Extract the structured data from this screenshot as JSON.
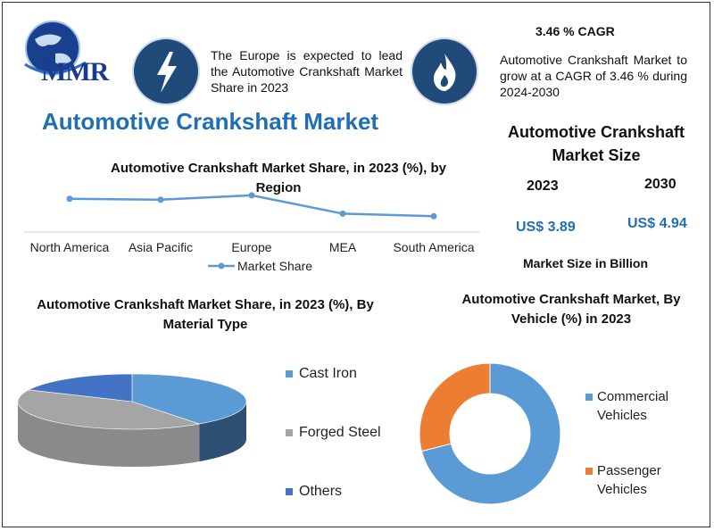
{
  "logo": {
    "text": "MMR"
  },
  "info_left": {
    "text": "The Europe is expected to lead the Automotive Crankshaft Market Share in 2023"
  },
  "cagr": {
    "title": "3.46 % CAGR",
    "text": "Automotive Crankshaft Market to grow at a CAGR of 3.46 % during 2024-2030"
  },
  "main_title": "Automotive Crankshaft Market",
  "market_size": {
    "title": "Automotive Crankshaft Market Size",
    "years": [
      "2023",
      "2030"
    ],
    "values": [
      "US$ 3.89",
      "US$ 4.94"
    ],
    "unit_note": "Market Size in Billion"
  },
  "colors": {
    "dark_navy": "#1f4a7a",
    "title_blue": "#1f6fb2",
    "line_blue": "#5b9bd5",
    "cast_iron": "#5b9bd5",
    "forged_steel": "#a5a5a5",
    "others": "#4472c4",
    "commercial": "#5b9bd5",
    "passenger": "#ed7d31"
  },
  "icons": [
    "globe-logo-icon",
    "lightning-icon",
    "flame-icon"
  ],
  "chart_data": [
    {
      "type": "line",
      "title": "Automotive Crankshaft Market Share, in 2023 (%), by Region",
      "categories": [
        "North America",
        "Asia Pacific",
        "Europe",
        "MEA",
        "South America"
      ],
      "series": [
        {
          "name": "Market Share",
          "values": [
            34,
            33,
            38,
            17,
            14
          ]
        }
      ],
      "ylim": [
        0,
        45
      ],
      "grid": false,
      "legend": "bottom"
    },
    {
      "type": "pie",
      "title": "Automotive Crankshaft Market Share, in 2023 (%), By Material Type",
      "labels": [
        "Cast Iron",
        "Forged Steel",
        "Others"
      ],
      "values": [
        40,
        42,
        18
      ],
      "legend": "right"
    },
    {
      "type": "pie",
      "title": "Automotive Crankshaft Market, By Vehicle (%) in 2023",
      "labels": [
        "Commercial Vehicles",
        "Passenger Vehicles"
      ],
      "values": [
        71,
        29
      ],
      "legend": "right"
    }
  ]
}
